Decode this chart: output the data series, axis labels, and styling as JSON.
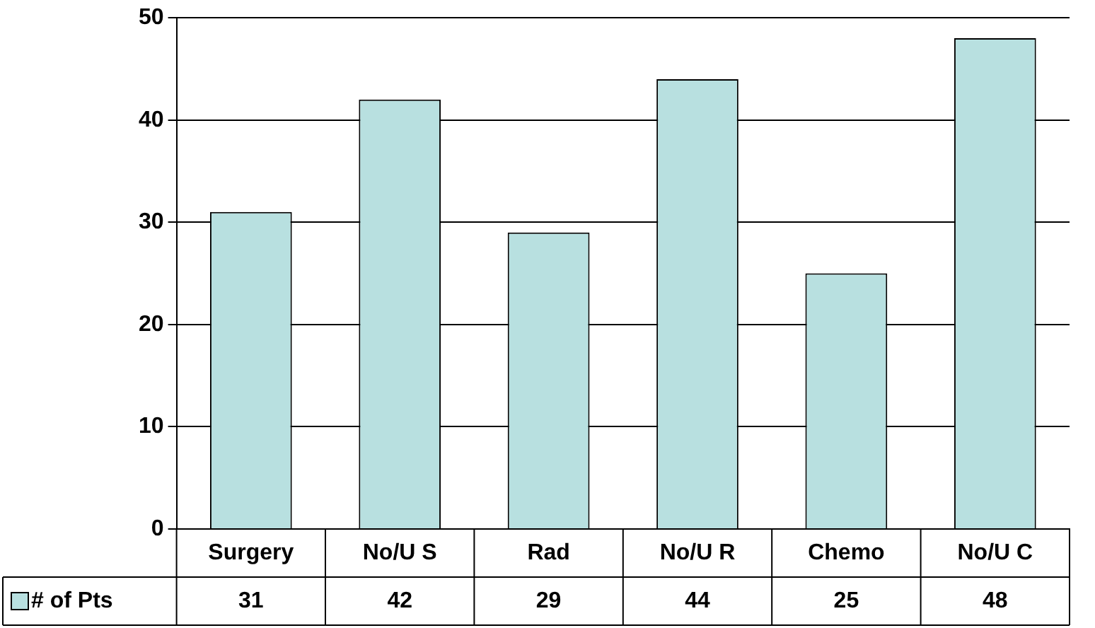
{
  "chart_data": {
    "type": "bar",
    "categories": [
      "Surgery",
      "No/U S",
      "Rad",
      "No/U R",
      "Chemo",
      "No/U C"
    ],
    "series": [
      {
        "name": "# of Pts",
        "color": "#b8e0e0",
        "values": [
          31,
          42,
          29,
          44,
          25,
          48
        ]
      }
    ],
    "ylim": [
      0,
      50
    ],
    "yticks": [
      0,
      10,
      20,
      30,
      40,
      50
    ],
    "grid": "y",
    "legend": "bottom left",
    "data_labels": true
  }
}
